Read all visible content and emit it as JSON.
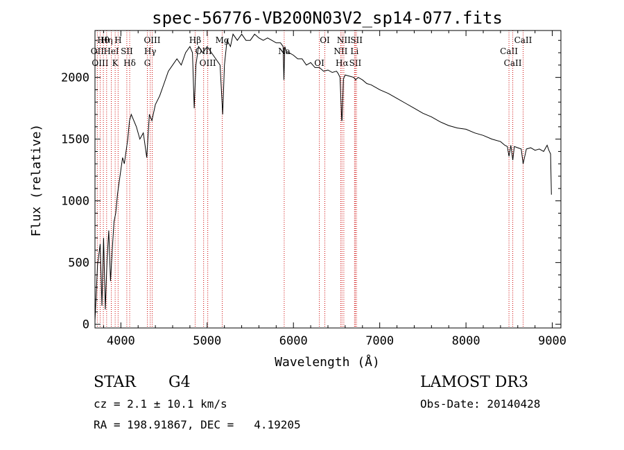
{
  "chart_data": {
    "type": "line",
    "title": "spec-56776-VB200N03V2_sp14-077.fits",
    "xlabel": "Wavelength (Å)",
    "ylabel": "Flux (relative)",
    "xlim": [
      3700,
      9100
    ],
    "ylim": [
      -30,
      2380
    ],
    "x_ticks": [
      4000,
      5000,
      6000,
      7000,
      8000,
      9000
    ],
    "x_tick_labels": [
      "4000",
      "5000",
      "6000",
      "7000",
      "8000",
      "9000"
    ],
    "y_ticks": [
      0,
      500,
      1000,
      1500,
      2000
    ],
    "y_tick_labels": [
      "0",
      "500",
      "1000",
      "1500",
      "2000"
    ],
    "grid": false,
    "line_color": "#000000",
    "marker_color": "#cc0000",
    "series": [
      {
        "x": [
          3700,
          3730,
          3760,
          3780,
          3800,
          3820,
          3840,
          3860,
          3880,
          3900,
          3920,
          3940,
          3960,
          3980,
          4000,
          4020,
          4040,
          4060,
          4080,
          4100,
          4120,
          4150,
          4180,
          4220,
          4260,
          4300,
          4330,
          4360,
          4400,
          4450,
          4500,
          4550,
          4600,
          4650,
          4700,
          4750,
          4800,
          4830,
          4850,
          4870,
          4900,
          4950,
          5000,
          5050,
          5100,
          5150,
          5180,
          5200,
          5230,
          5270,
          5300,
          5350,
          5400,
          5450,
          5500,
          5550,
          5600,
          5650,
          5700,
          5750,
          5800,
          5850,
          5880,
          5890,
          5900,
          5920,
          5950,
          6000,
          6050,
          6100,
          6150,
          6200,
          6250,
          6300,
          6350,
          6400,
          6450,
          6500,
          6520,
          6540,
          6560,
          6563,
          6580,
          6600,
          6650,
          6700,
          6720,
          6750,
          6800,
          6850,
          6900,
          7000,
          7100,
          7200,
          7300,
          7400,
          7500,
          7600,
          7700,
          7800,
          7900,
          8000,
          8100,
          8200,
          8300,
          8400,
          8450,
          8480,
          8498,
          8520,
          8542,
          8560,
          8600,
          8640,
          8662,
          8700,
          8750,
          8800,
          8850,
          8900,
          8940,
          8960,
          8980,
          8990
        ],
        "y": [
          30,
          480,
          650,
          150,
          700,
          120,
          520,
          760,
          350,
          600,
          830,
          900,
          1050,
          1150,
          1250,
          1350,
          1300,
          1400,
          1500,
          1650,
          1700,
          1650,
          1600,
          1500,
          1550,
          1350,
          1700,
          1650,
          1780,
          1850,
          1950,
          2050,
          2100,
          2150,
          2100,
          2200,
          2250,
          2200,
          1750,
          2100,
          2250,
          2200,
          2250,
          2200,
          2150,
          2100,
          1700,
          2100,
          2300,
          2250,
          2350,
          2300,
          2350,
          2300,
          2300,
          2350,
          2320,
          2300,
          2320,
          2300,
          2280,
          2280,
          2250,
          1980,
          2250,
          2200,
          2200,
          2180,
          2150,
          2150,
          2100,
          2120,
          2080,
          2080,
          2050,
          2060,
          2040,
          2050,
          2030,
          2000,
          1650,
          1650,
          1990,
          2020,
          2010,
          2000,
          1980,
          2000,
          1980,
          1950,
          1940,
          1900,
          1870,
          1830,
          1790,
          1750,
          1710,
          1680,
          1640,
          1610,
          1590,
          1580,
          1550,
          1530,
          1500,
          1480,
          1450,
          1440,
          1360,
          1450,
          1330,
          1440,
          1430,
          1420,
          1300,
          1420,
          1430,
          1410,
          1420,
          1400,
          1450,
          1410,
          1380,
          1050
        ]
      }
    ],
    "line_markers": [
      {
        "label": "Hθ",
        "x": 3797
      },
      {
        "label": "OII",
        "x": 3727
      },
      {
        "label": "OIII",
        "x": 3760
      },
      {
        "label": "Hη",
        "x": 3835
      },
      {
        "label": "HeI",
        "x": 3889
      },
      {
        "label": "K",
        "x": 3934
      },
      {
        "label": "H",
        "x": 3968
      },
      {
        "label": "SII",
        "x": 4069
      },
      {
        "label": "Hδ",
        "x": 4102
      },
      {
        "label": "OIII",
        "x": 4363
      },
      {
        "label": "Hγ",
        "x": 4340
      },
      {
        "label": "G",
        "x": 4307
      },
      {
        "label": "Hβ",
        "x": 4861
      },
      {
        "label": "OIII",
        "x": 4959
      },
      {
        "label": "OIII",
        "x": 5007
      },
      {
        "label": "Mg",
        "x": 5175
      },
      {
        "label": "Na",
        "x": 5893
      },
      {
        "label": "OI",
        "x": 6300
      },
      {
        "label": "OI",
        "x": 6364
      },
      {
        "label": "NII",
        "x": 6548
      },
      {
        "label": "Hα",
        "x": 6563
      },
      {
        "label": "NII",
        "x": 6584
      },
      {
        "label": "Li",
        "x": 6708
      },
      {
        "label": "SII",
        "x": 6717
      },
      {
        "label": "SII",
        "x": 6731
      },
      {
        "label": "CaII",
        "x": 8498
      },
      {
        "label": "CaII",
        "x": 8542
      },
      {
        "label": "CaII",
        "x": 8662
      }
    ]
  },
  "info": {
    "class": "STAR",
    "subclass": "G4",
    "survey": "LAMOST DR3",
    "cz": "cz = 2.1 ± 10.1 km/s",
    "obs_date": "Obs-Date: 20140428",
    "coords": "RA = 198.91867, DEC =   4.19205"
  }
}
